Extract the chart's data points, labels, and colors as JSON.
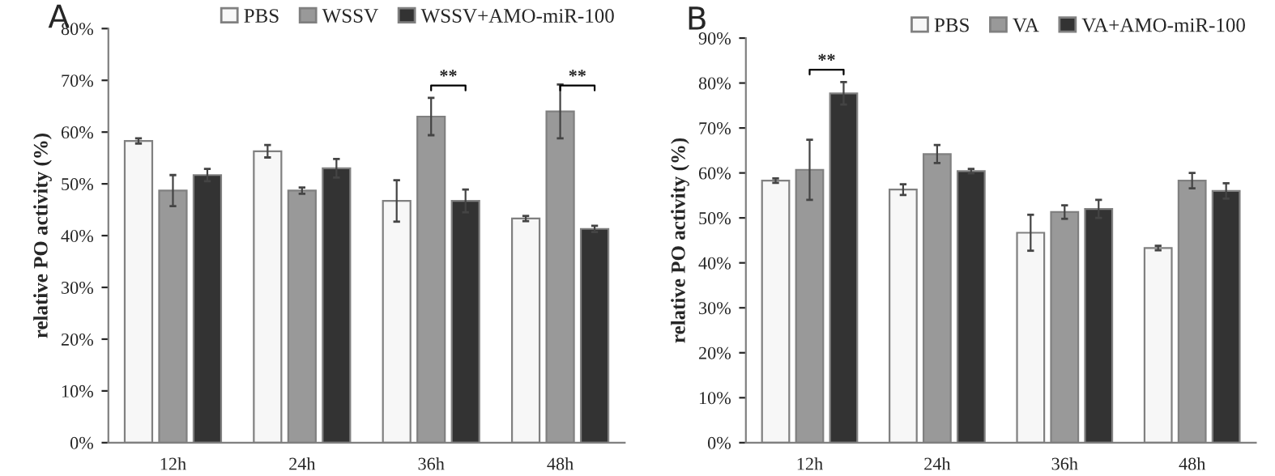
{
  "chart_data": [
    {
      "type": "bar",
      "ylabel": "relative PO activity (%)",
      "categories": [
        "12h",
        "24h",
        "36h",
        "48h"
      ],
      "series": [
        {
          "name": "PBS",
          "color": "#f7f7f7",
          "values": [
            58.3,
            56.3,
            46.7,
            43.3
          ],
          "errors": [
            0.5,
            1.2,
            4,
            0.5
          ]
        },
        {
          "name": "WSSV",
          "color": "#999999",
          "values": [
            48.7,
            48.7,
            63,
            64
          ],
          "errors": [
            3,
            0.6,
            3.6,
            5.2
          ]
        },
        {
          "name": "WSSV+AMO-miR-100",
          "color": "#333333",
          "values": [
            51.7,
            53,
            46.7,
            41.3
          ],
          "errors": [
            1.2,
            1.8,
            2.2,
            0.6
          ]
        }
      ],
      "ylim": [
        0,
        80
      ],
      "yticks": [
        {
          "value": 0,
          "label": "0%"
        },
        {
          "value": 10,
          "label": "10%"
        },
        {
          "value": 20,
          "label": "20%"
        },
        {
          "value": 30,
          "label": "30%"
        },
        {
          "value": 40,
          "label": "40%"
        },
        {
          "value": 50,
          "label": "50%"
        },
        {
          "value": 60,
          "label": "60%"
        },
        {
          "value": 70,
          "label": "70%"
        },
        {
          "value": 80,
          "label": "80%"
        }
      ],
      "legend": "top right",
      "grid": false,
      "annotations": [
        "A",
        "**",
        "**"
      ]
    },
    {
      "type": "bar",
      "ylabel": "relative PO activity (%)",
      "categories": [
        "12h",
        "24h",
        "36h",
        "48h"
      ],
      "series": [
        {
          "name": "PBS",
          "color": "#f7f7f7",
          "values": [
            58.3,
            56.3,
            46.7,
            43.3
          ],
          "errors": [
            0.5,
            1.2,
            4,
            0.5
          ]
        },
        {
          "name": "VA",
          "color": "#999999",
          "values": [
            60.7,
            64.2,
            51.3,
            58.3
          ],
          "errors": [
            6.7,
            2,
            1.5,
            1.7
          ]
        },
        {
          "name": "VA+AMO-miR-100",
          "color": "#333333",
          "values": [
            77.7,
            60.4,
            52,
            56
          ],
          "errors": [
            2.5,
            0.5,
            2,
            1.7
          ]
        }
      ],
      "ylim": [
        0,
        90
      ],
      "yticks": [
        {
          "value": 0,
          "label": "0%"
        },
        {
          "value": 10,
          "label": "10%"
        },
        {
          "value": 20,
          "label": "20%"
        },
        {
          "value": 30,
          "label": "30%"
        },
        {
          "value": 40,
          "label": "40%"
        },
        {
          "value": 50,
          "label": "50%"
        },
        {
          "value": 60,
          "label": "60%"
        },
        {
          "value": 70,
          "label": "70%"
        },
        {
          "value": 80,
          "label": "80%"
        },
        {
          "value": 90,
          "label": "90%"
        }
      ],
      "legend": "top right",
      "grid": false,
      "annotations": [
        "B",
        "**"
      ]
    }
  ]
}
